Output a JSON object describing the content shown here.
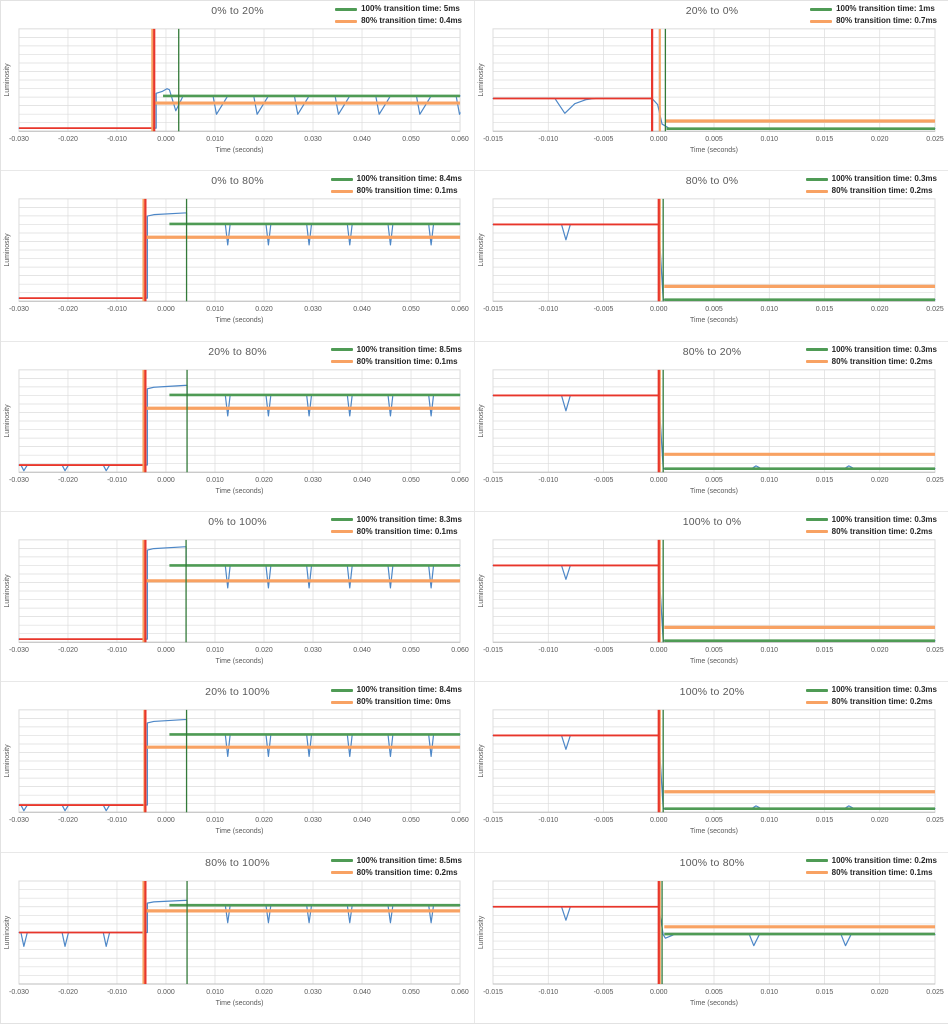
{
  "colors": {
    "blue": "#4d87c7",
    "red": "#e8362b",
    "green": "#4f9b55",
    "green_marker": "#337a39",
    "orange": "#f8a263",
    "grid": "#dcdcdc",
    "axis_line": "#bdbdbd",
    "text_gray": "#595959",
    "legend_text": "#262626",
    "panel_border": "#e2e2e2",
    "background": "#ffffff"
  },
  "axis": {
    "x_label": "Time (seconds)",
    "y_label": "Luminosity"
  },
  "chart_data": [
    {
      "type": "line",
      "title": "0% to 20%",
      "transition_100_ms": 5,
      "transition_80_ms": 0.4,
      "legend": [
        {
          "label": "100% transition time: 5ms",
          "color": "green"
        },
        {
          "label": "80% transition time: 0.4ms",
          "color": "orange"
        }
      ],
      "x_range": [
        -0.03,
        0.06
      ],
      "x_ticks": [
        "-0.030",
        "-0.020",
        "-0.010",
        "0.000",
        "0.010",
        "0.020",
        "0.030",
        "0.040",
        "0.050",
        "0.060"
      ],
      "trigger_t": -0.0024,
      "marker_green_t": 0.0026,
      "marker_orange_t": -0.0028,
      "orange_h": {
        "start": -0.0024,
        "level": 0.725
      },
      "green_h": {
        "start": -0.0006,
        "level": 0.655
      },
      "trace": {
        "kind": "rise",
        "base": 0.97,
        "rise_top": 0.63,
        "overshoot": 0.585,
        "steady": 0.655,
        "peak_dip": {
          "t": 0.002,
          "level": 0.8
        },
        "dips": [
          0.0102,
          0.0185,
          0.0268,
          0.0351,
          0.0434,
          0.0517,
          0.0598
        ],
        "dip_level": 0.835,
        "wide_dips": true
      }
    },
    {
      "type": "line",
      "title": "20% to 0%",
      "transition_100_ms": 1,
      "transition_80_ms": 0.7,
      "legend": [
        {
          "label": "100% transition time: 1ms",
          "color": "green"
        },
        {
          "label": "80% transition time: 0.7ms",
          "color": "orange"
        }
      ],
      "x_range": [
        -0.015,
        0.025
      ],
      "x_ticks": [
        "-0.015",
        "-0.010",
        "-0.005",
        "0.000",
        "0.005",
        "0.010",
        "0.015",
        "0.020",
        "0.025"
      ],
      "trigger_t": -0.0006,
      "marker_green_t": 0.0006,
      "marker_orange_t": 0.0001,
      "orange_h": {
        "start": 0.0006,
        "level": 0.9
      },
      "green_h": {
        "start": 0.0007,
        "level": 0.975
      },
      "trace": {
        "kind": "fall",
        "base": 0.68,
        "end": 0.975,
        "fall_soft": true,
        "pre_dip": {
          "t": -0.0085,
          "level": 0.825,
          "wide": true
        }
      }
    },
    {
      "type": "line",
      "title": "0% to 80%",
      "transition_100_ms": 8.4,
      "transition_80_ms": 0.1,
      "legend": [
        {
          "label": "100% transition time: 8.4ms",
          "color": "green"
        },
        {
          "label": "80% transition time: 0.1ms",
          "color": "orange"
        }
      ],
      "x_range": [
        -0.03,
        0.06
      ],
      "x_ticks": [
        "-0.030",
        "-0.020",
        "-0.010",
        "0.000",
        "0.010",
        "0.020",
        "0.030",
        "0.040",
        "0.050",
        "0.060"
      ],
      "trigger_t": -0.0042,
      "marker_green_t": 0.0042,
      "marker_orange_t": -0.0046,
      "orange_h": {
        "start": -0.0042,
        "level": 0.375
      },
      "green_h": {
        "start": 0.0007,
        "level": 0.245
      },
      "trace": {
        "kind": "rise",
        "base": 0.97,
        "rise_top": 0.168,
        "overshoot": 0.138,
        "steady": 0.245,
        "dips": [
          0.0125,
          0.0208,
          0.0291,
          0.0374,
          0.0457,
          0.054
        ],
        "dip_level": 0.45
      }
    },
    {
      "type": "line",
      "title": "80% to 0%",
      "transition_100_ms": 0.3,
      "transition_80_ms": 0.2,
      "legend": [
        {
          "label": "100% transition time: 0.3ms",
          "color": "green"
        },
        {
          "label": "80% transition time: 0.2ms",
          "color": "orange"
        }
      ],
      "x_range": [
        -0.015,
        0.025
      ],
      "x_ticks": [
        "-0.015",
        "-0.010",
        "-0.005",
        "0.000",
        "0.005",
        "0.010",
        "0.015",
        "0.020",
        "0.025"
      ],
      "trigger_t": 0,
      "marker_green_t": 0.0004,
      "marker_orange_t": 0.0001,
      "orange_h": {
        "start": 0.0005,
        "level": 0.855
      },
      "green_h": {
        "start": 0.0005,
        "level": 0.985
      },
      "trace": {
        "kind": "fall",
        "base": 0.25,
        "end": 0.985,
        "pre_dip": {
          "t": -0.0085,
          "level": 0.4
        }
      }
    },
    {
      "type": "line",
      "title": "20% to 80%",
      "transition_100_ms": 8.5,
      "transition_80_ms": 0.1,
      "legend": [
        {
          "label": "100% transition time: 8.5ms",
          "color": "green"
        },
        {
          "label": "80% transition time: 0.1ms",
          "color": "orange"
        }
      ],
      "x_range": [
        -0.03,
        0.06
      ],
      "x_ticks": [
        "-0.030",
        "-0.020",
        "-0.010",
        "0.000",
        "0.010",
        "0.020",
        "0.030",
        "0.040",
        "0.050",
        "0.060"
      ],
      "trigger_t": -0.0042,
      "marker_green_t": 0.0043,
      "marker_orange_t": -0.0046,
      "orange_h": {
        "start": -0.0042,
        "level": 0.375
      },
      "green_h": {
        "start": 0.0007,
        "level": 0.245
      },
      "trace": {
        "kind": "rise",
        "base": 0.93,
        "pre_dips": [
          -0.029,
          -0.0206,
          -0.0122
        ],
        "pre_dip_level": 0.985,
        "rise_top": 0.185,
        "overshoot": 0.152,
        "steady": 0.245,
        "dips": [
          0.0125,
          0.0208,
          0.0291,
          0.0374,
          0.0457,
          0.054
        ],
        "dip_level": 0.45
      }
    },
    {
      "type": "line",
      "title": "80% to 20%",
      "transition_100_ms": 0.3,
      "transition_80_ms": 0.2,
      "legend": [
        {
          "label": "100% transition time: 0.3ms",
          "color": "green"
        },
        {
          "label": "80% transition time: 0.2ms",
          "color": "orange"
        }
      ],
      "x_range": [
        -0.015,
        0.025
      ],
      "x_ticks": [
        "-0.015",
        "-0.010",
        "-0.005",
        "0.000",
        "0.005",
        "0.010",
        "0.015",
        "0.020",
        "0.025"
      ],
      "trigger_t": 0,
      "marker_green_t": 0.0004,
      "marker_orange_t": 0.0001,
      "orange_h": {
        "start": 0.0005,
        "level": 0.825
      },
      "green_h": {
        "start": 0.0005,
        "level": 0.965
      },
      "trace": {
        "kind": "fall",
        "base": 0.25,
        "end": 0.965,
        "pre_dip": {
          "t": -0.0085,
          "level": 0.4
        },
        "bumps": [
          0.0088,
          0.0172
        ],
        "bump_level": 0.938
      }
    },
    {
      "type": "line",
      "title": "0% to 100%",
      "transition_100_ms": 8.3,
      "transition_80_ms": 0.1,
      "legend": [
        {
          "label": "100% transition time: 8.3ms",
          "color": "green"
        },
        {
          "label": "80% transition time: 0.1ms",
          "color": "orange"
        }
      ],
      "x_range": [
        -0.03,
        0.06
      ],
      "x_ticks": [
        "-0.030",
        "-0.020",
        "-0.010",
        "0.000",
        "0.010",
        "0.020",
        "0.030",
        "0.040",
        "0.050",
        "0.060"
      ],
      "trigger_t": -0.0042,
      "marker_green_t": 0.0041,
      "marker_orange_t": -0.0046,
      "orange_h": {
        "start": -0.0042,
        "level": 0.4
      },
      "green_h": {
        "start": 0.0007,
        "level": 0.25
      },
      "trace": {
        "kind": "rise",
        "base": 0.97,
        "rise_top": 0.1,
        "overshoot": 0.068,
        "steady": 0.25,
        "dips": [
          0.0125,
          0.0208,
          0.0291,
          0.0374,
          0.0457,
          0.054
        ],
        "dip_level": 0.47
      }
    },
    {
      "type": "line",
      "title": "100% to 0%",
      "transition_100_ms": 0.3,
      "transition_80_ms": 0.2,
      "legend": [
        {
          "label": "100% transition time: 0.3ms",
          "color": "green"
        },
        {
          "label": "80% transition time: 0.2ms",
          "color": "orange"
        }
      ],
      "x_range": [
        -0.015,
        0.025
      ],
      "x_ticks": [
        "-0.015",
        "-0.010",
        "-0.005",
        "0.000",
        "0.005",
        "0.010",
        "0.015",
        "0.020",
        "0.025"
      ],
      "trigger_t": 0,
      "marker_green_t": 0.0004,
      "marker_orange_t": 0.0001,
      "orange_h": {
        "start": 0.0005,
        "level": 0.855
      },
      "green_h": {
        "start": 0.0005,
        "level": 0.985
      },
      "trace": {
        "kind": "fall",
        "base": 0.25,
        "end": 0.985,
        "pre_dip": {
          "t": -0.0085,
          "level": 0.385
        }
      }
    },
    {
      "type": "line",
      "title": "20% to 100%",
      "transition_100_ms": 8.4,
      "transition_80_ms": 0,
      "legend": [
        {
          "label": "100% transition time: 8.4ms",
          "color": "green"
        },
        {
          "label": "80% transition time: 0ms",
          "color": "orange"
        }
      ],
      "x_range": [
        -0.03,
        0.06
      ],
      "x_ticks": [
        "-0.030",
        "-0.020",
        "-0.010",
        "0.000",
        "0.010",
        "0.020",
        "0.030",
        "0.040",
        "0.050",
        "0.060"
      ],
      "trigger_t": -0.0042,
      "marker_green_t": 0.0042,
      "marker_orange_t": -0.0044,
      "orange_h": {
        "start": -0.0042,
        "level": 0.365
      },
      "green_h": {
        "start": 0.0007,
        "level": 0.24
      },
      "trace": {
        "kind": "rise",
        "base": 0.93,
        "pre_dips": [
          -0.029,
          -0.0206,
          -0.0122
        ],
        "pre_dip_level": 0.985,
        "rise_top": 0.128,
        "overshoot": 0.095,
        "steady": 0.24,
        "dips": [
          0.0125,
          0.0208,
          0.0291,
          0.0374,
          0.0457,
          0.054
        ],
        "dip_level": 0.455
      }
    },
    {
      "type": "line",
      "title": "100% to 20%",
      "transition_100_ms": 0.3,
      "transition_80_ms": 0.2,
      "legend": [
        {
          "label": "100% transition time: 0.3ms",
          "color": "green"
        },
        {
          "label": "80% transition time: 0.2ms",
          "color": "orange"
        }
      ],
      "x_range": [
        -0.015,
        0.025
      ],
      "x_ticks": [
        "-0.015",
        "-0.010",
        "-0.005",
        "0.000",
        "0.005",
        "0.010",
        "0.015",
        "0.020",
        "0.025"
      ],
      "trigger_t": 0,
      "marker_green_t": 0.0004,
      "marker_orange_t": 0.0001,
      "orange_h": {
        "start": 0.0005,
        "level": 0.8
      },
      "green_h": {
        "start": 0.0005,
        "level": 0.965
      },
      "trace": {
        "kind": "fall",
        "base": 0.25,
        "end": 0.965,
        "pre_dip": {
          "t": -0.0085,
          "level": 0.385
        },
        "bumps": [
          0.0088,
          0.0172
        ],
        "bump_level": 0.938
      }
    },
    {
      "type": "line",
      "title": "80% to 100%",
      "transition_100_ms": 8.5,
      "transition_80_ms": 0.2,
      "legend": [
        {
          "label": "100% transition time: 8.5ms",
          "color": "green"
        },
        {
          "label": "80% transition time: 0.2ms",
          "color": "orange"
        }
      ],
      "x_range": [
        -0.03,
        0.06
      ],
      "x_ticks": [
        "-0.030",
        "-0.020",
        "-0.010",
        "0.000",
        "0.010",
        "0.020",
        "0.030",
        "0.040",
        "0.050",
        "0.060"
      ],
      "trigger_t": -0.0042,
      "marker_green_t": 0.0043,
      "marker_orange_t": -0.0046,
      "orange_h": {
        "start": -0.0042,
        "level": 0.29
      },
      "green_h": {
        "start": 0.0007,
        "level": 0.235
      },
      "trace": {
        "kind": "rise",
        "base": 0.5,
        "pre_dips": [
          -0.029,
          -0.0206,
          -0.0122
        ],
        "pre_dip_level": 0.635,
        "rise_top": 0.215,
        "overshoot": 0.188,
        "steady": 0.235,
        "dips": [
          0.0125,
          0.0208,
          0.0291,
          0.0374,
          0.0457,
          0.054
        ],
        "dip_level": 0.405
      }
    },
    {
      "type": "line",
      "title": "100% to 80%",
      "transition_100_ms": 0.2,
      "transition_80_ms": 0.1,
      "legend": [
        {
          "label": "100% transition time: 0.2ms",
          "color": "green"
        },
        {
          "label": "80% transition time: 0.1ms",
          "color": "orange"
        }
      ],
      "x_range": [
        -0.015,
        0.025
      ],
      "x_ticks": [
        "-0.015",
        "-0.010",
        "-0.005",
        "0.000",
        "0.005",
        "0.010",
        "0.015",
        "0.020",
        "0.025"
      ],
      "trigger_t": 0,
      "marker_green_t": 0.0003,
      "marker_orange_t": 0.0001,
      "orange_h": {
        "start": 0.0005,
        "level": 0.445
      },
      "green_h": {
        "start": 0.0005,
        "level": 0.515
      },
      "trace": {
        "kind": "fall",
        "base": 0.25,
        "end": 0.52,
        "settle": 0.555,
        "pre_dip": {
          "t": -0.0085,
          "level": 0.38
        },
        "bumps": [
          0.0086,
          0.0169
        ],
        "bump_level": 0.628
      }
    }
  ]
}
